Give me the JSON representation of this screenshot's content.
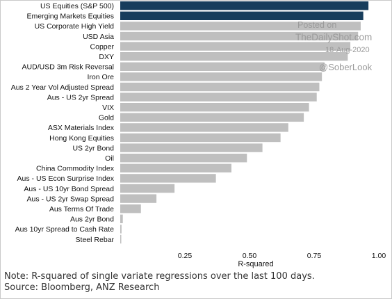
{
  "chart_data": {
    "type": "bar",
    "orientation": "horizontal",
    "categories": [
      "US Equities (S&P 500)",
      "Emerging Markets Equities",
      "US Corporate High Yield",
      "USD Asia",
      "Copper",
      "DXY",
      "AUD/USD 3m Risk Reversal",
      "Iron Ore",
      "Aus 2 Year Vol Adjusted Spread",
      "Aus - US 2yr Spread",
      "VIX",
      "Gold",
      "ASX Materials Index",
      "Hong Kong Equities",
      "US 2yr Bond",
      "Oil",
      "China Commodity Index",
      "Aus - US Econ Surprise Index",
      "Aus - US 10yr Bond Spread",
      "Aus - US 2yr Swap Spread",
      "Aus Terms Of Trade",
      "Aus 2yr Bond",
      "Aus 10yr Spread to Cash Rate",
      "Steel Rebar"
    ],
    "values": [
      0.96,
      0.94,
      0.93,
      0.92,
      0.89,
      0.88,
      0.79,
      0.78,
      0.77,
      0.76,
      0.73,
      0.71,
      0.65,
      0.62,
      0.55,
      0.49,
      0.43,
      0.37,
      0.21,
      0.14,
      0.08,
      0.01,
      0.005,
      0.004
    ],
    "highlight_count": 2,
    "xlabel": "R-squared",
    "ylabel": "",
    "xlim": [
      0,
      1.0
    ],
    "xticks": [
      "0.25",
      "0.50",
      "0.75",
      "1.00"
    ],
    "xtick_values": [
      0.25,
      0.5,
      0.75,
      1.0
    ],
    "grid": false,
    "colors": {
      "highlight": "#173d5c",
      "default": "#bfbfbf"
    }
  },
  "watermark": {
    "line1": "Posted on",
    "line2": "TheDailyShot.com",
    "line3": "18-Aug-2020",
    "line4": "@SoberLook"
  },
  "footer": {
    "note": "Note: R-squared of single variate regressions over the last 100 days.",
    "source": "Source: Bloomberg, ANZ Research"
  }
}
